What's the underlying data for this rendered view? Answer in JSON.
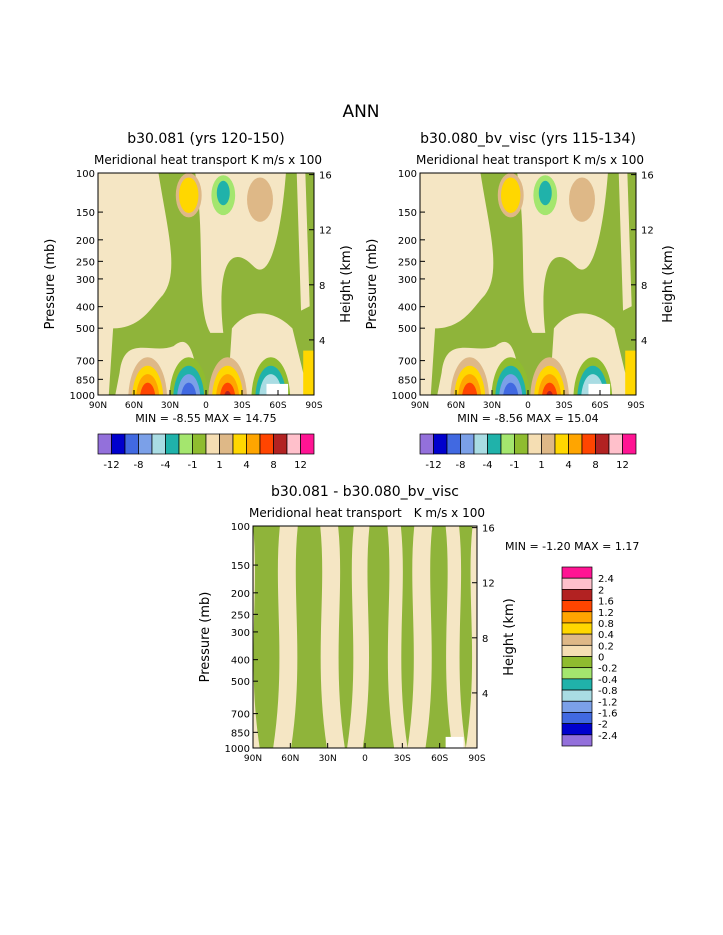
{
  "page_title": "ANN",
  "panels": [
    {
      "title": "b30.081 (yrs 120-150)",
      "subtitle": "Meridional heat transport",
      "units": "K m/s x 100",
      "ylabel": "Pressure (mb)",
      "ylabel_right": "Height (km)",
      "stats": "MIN =   -8.55   MAX =   14.75"
    },
    {
      "title": "b30.080_bv_visc (yrs 115-134)",
      "subtitle": "Meridional heat transport",
      "units": "K m/s x 100",
      "ylabel": "Pressure (mb)",
      "ylabel_right": "Height (km)",
      "stats": "MIN =   -8.56   MAX =   15.04"
    },
    {
      "title": "b30.081 - b30.080_bv_visc",
      "subtitle": "Meridional heat transport",
      "units": "K m/s x 100",
      "ylabel": "Pressure (mb)",
      "ylabel_right": "Height (km)",
      "stats": "MIN =   -1.20   MAX =    1.17"
    }
  ],
  "chart_data": [
    {
      "type": "heatmap",
      "title": "b30.081 (yrs 120-150)",
      "subtitle": "Meridional heat transport",
      "units": "K m/s x 100",
      "x_ticks": [
        "90N",
        "60N",
        "30N",
        "0",
        "30S",
        "60S",
        "90S"
      ],
      "y_ticks_pressure": [
        100,
        150,
        200,
        250,
        300,
        400,
        500,
        700,
        850,
        1000
      ],
      "y_ticks_height": [
        16,
        12,
        8,
        4
      ],
      "ylabel": "Pressure (mb)",
      "ylabel_right": "Height (km)",
      "y_scale": "log pressure",
      "min": -8.55,
      "max": 14.75,
      "colorbar_levels": [
        -12,
        -10,
        -8,
        -6,
        -4,
        -2,
        -1,
        0,
        1,
        2,
        4,
        6,
        8,
        10,
        12
      ],
      "colorbar_labels": [
        "-12",
        "-8",
        "-4",
        "-1",
        "1",
        "4",
        "8",
        "12"
      ]
    },
    {
      "type": "heatmap",
      "title": "b30.080_bv_visc (yrs 115-134)",
      "subtitle": "Meridional heat transport",
      "units": "K m/s x 100",
      "x_ticks": [
        "90N",
        "60N",
        "30N",
        "0",
        "30S",
        "60S",
        "90S"
      ],
      "y_ticks_pressure": [
        100,
        150,
        200,
        250,
        300,
        400,
        500,
        700,
        850,
        1000
      ],
      "y_ticks_height": [
        16,
        12,
        8,
        4
      ],
      "ylabel": "Pressure (mb)",
      "ylabel_right": "Height (km)",
      "y_scale": "log pressure",
      "min": -8.56,
      "max": 15.04,
      "colorbar_levels": [
        -12,
        -10,
        -8,
        -6,
        -4,
        -2,
        -1,
        0,
        1,
        2,
        4,
        6,
        8,
        10,
        12
      ],
      "colorbar_labels": [
        "-12",
        "-8",
        "-4",
        "-1",
        "1",
        "4",
        "8",
        "12"
      ]
    },
    {
      "type": "heatmap",
      "title": "b30.081 - b30.080_bv_visc",
      "subtitle": "Meridional heat transport",
      "units": "K m/s x 100",
      "x_ticks": [
        "90N",
        "60N",
        "30N",
        "0",
        "30S",
        "60S",
        "90S"
      ],
      "y_ticks_pressure": [
        100,
        150,
        200,
        250,
        300,
        400,
        500,
        700,
        850,
        1000
      ],
      "y_ticks_height": [
        16,
        12,
        8,
        4
      ],
      "ylabel": "Pressure (mb)",
      "ylabel_right": "Height (km)",
      "y_scale": "log pressure",
      "min": -1.2,
      "max": 1.17,
      "colorbar_levels": [
        -2.4,
        -2,
        -1.6,
        -1.2,
        -0.8,
        -0.4,
        -0.2,
        0,
        0.2,
        0.4,
        0.8,
        1.2,
        1.6,
        2,
        2.4
      ],
      "colorbar_labels": [
        "2.4",
        "2",
        "1.6",
        "1.2",
        "0.8",
        "0.4",
        "0.2",
        "0",
        "-0.2",
        "-0.4",
        "-0.8",
        "-1.2",
        "-1.6",
        "-2",
        "-2.4"
      ]
    }
  ],
  "colors": {
    "palette": [
      "#9370db",
      "#0000cd",
      "#4169e1",
      "#7ba0e8",
      "#a9dce3",
      "#20b2aa",
      "#a4e66e",
      "#8fbc2f",
      "#f5deb3",
      "#deb887",
      "#ffd700",
      "#ffa500",
      "#ff4500",
      "#b22222",
      "#ffc0cb",
      "#ff1493"
    ],
    "background_field": "#f5e6c4",
    "positive_band": "#8fb43a"
  }
}
